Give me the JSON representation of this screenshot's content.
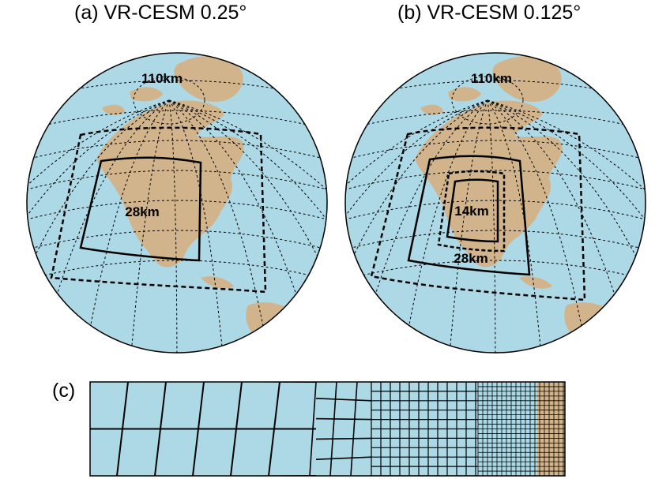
{
  "panels": [
    {
      "title": "(a) VR-CESM 0.25°",
      "labels": {
        "outer": "110km",
        "inner": "28km"
      }
    },
    {
      "title": "(b) VR-CESM 0.125°",
      "labels": {
        "outer": "110km",
        "mid": "28km",
        "inner": "14km"
      }
    }
  ],
  "panel_c": {
    "title": "(c)"
  },
  "colors": {
    "ocean": "#add8e6",
    "land": "#d2b48c",
    "line": "#000000"
  }
}
